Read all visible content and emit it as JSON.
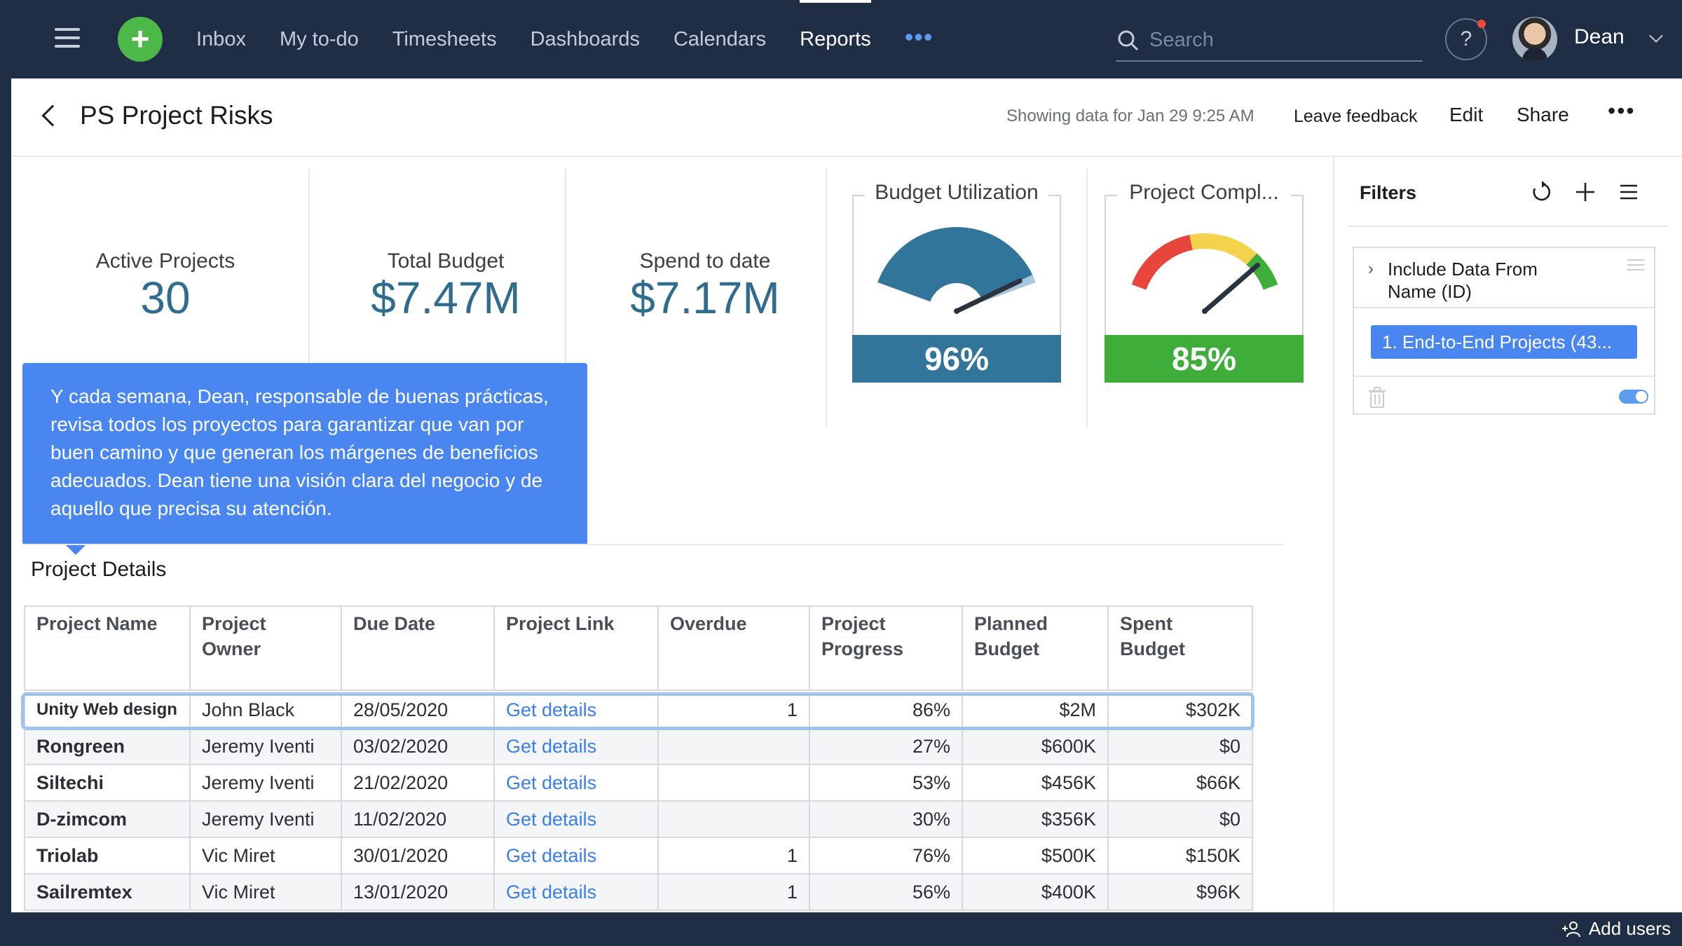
{
  "nav": {
    "items": [
      "Inbox",
      "My to-do",
      "Timesheets",
      "Dashboards",
      "Calendars",
      "Reports"
    ],
    "active": "Reports",
    "more": "•••",
    "search_placeholder": "Search",
    "help": "?",
    "user_name": "Dean"
  },
  "header": {
    "title": "PS Project Risks",
    "showing": "Showing data for Jan 29 9:25 AM",
    "leave_feedback": "Leave feedback",
    "edit": "Edit",
    "share": "Share",
    "more": "•••"
  },
  "kpis": {
    "active_projects": {
      "label": "Active Projects",
      "value": "30"
    },
    "total_budget": {
      "label": "Total Budget",
      "value": "$7.47M"
    },
    "spend_to_date": {
      "label": "Spend to date",
      "value": "$7.17M"
    }
  },
  "gauges": {
    "budget": {
      "title": "Budget Utilization",
      "value": "96%",
      "fraction": 0.96,
      "color": "#32759a"
    },
    "completion": {
      "title": "Project Compl...",
      "value": "85%",
      "fraction": 0.85,
      "color": "#3fad3a"
    }
  },
  "tooltip": {
    "text": "Y cada semana, Dean, responsable de buenas prácticas, revisa todos los proyectos para garantizar que van por buen camino y que generan los márgenes de beneficios adecuados. Dean tiene una visión clara del negocio y de aquello que precisa su atención."
  },
  "section_title": "Project Details",
  "table": {
    "headers": [
      "Project Name",
      "Project Owner",
      "Due Date",
      "Project Link",
      "Overdue",
      "Project Progress",
      "Planned Budget",
      "Spent Budget"
    ],
    "rows": [
      [
        "Unity Web design",
        "John Black",
        "28/05/2020",
        "Get details",
        "1",
        "86%",
        "$2M",
        "$302K"
      ],
      [
        "Rongreen",
        "Jeremy Iventi",
        "03/02/2020",
        "Get details",
        "",
        "27%",
        "$600K",
        "$0"
      ],
      [
        "Siltechi",
        "Jeremy Iventi",
        "21/02/2020",
        "Get details",
        "",
        "53%",
        "$456K",
        "$66K"
      ],
      [
        "D-zimcom",
        "Jeremy Iventi",
        "11/02/2020",
        "Get details",
        "",
        "30%",
        "$356K",
        "$0"
      ],
      [
        "Triolab",
        "Vic Miret",
        "30/01/2020",
        "Get details",
        "1",
        "76%",
        "$500K",
        "$150K"
      ],
      [
        "Sailremtex",
        "Vic Miret",
        "13/01/2020",
        "Get details",
        "1",
        "56%",
        "$400K",
        "$96K"
      ]
    ]
  },
  "filters": {
    "title": "Filters",
    "filter_label": "Include Data From Name (ID)",
    "chip": "1. End-to-End Projects (43..."
  },
  "footer": {
    "add_users": "Add users"
  },
  "colors": {
    "nav_bg": "#1f2e45",
    "accent": "#4a86f0",
    "kpi_value": "#2f6c8e",
    "plus": "#4cb848"
  }
}
